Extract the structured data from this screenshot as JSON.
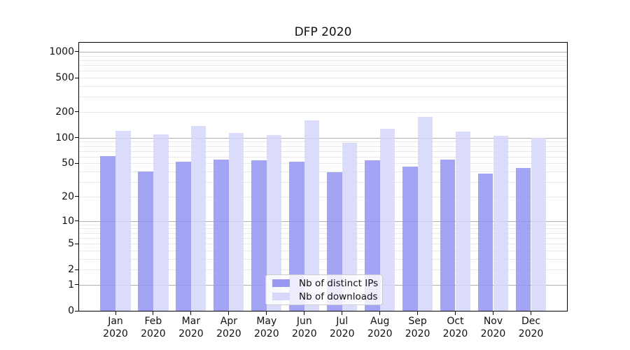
{
  "chart_data": {
    "type": "bar",
    "title": "DFP 2020",
    "categories": [
      "Jan 2020",
      "Feb 2020",
      "Mar 2020",
      "Apr 2020",
      "May 2020",
      "Jun 2020",
      "Jul 2020",
      "Aug 2020",
      "Sep 2020",
      "Oct 2020",
      "Nov 2020",
      "Dec 2020"
    ],
    "series": [
      {
        "name": "Nb of distinct IPs",
        "color": "#9494f3",
        "values": [
          61,
          40,
          52,
          55,
          54,
          52,
          39,
          54,
          46,
          55,
          38,
          44
        ]
      },
      {
        "name": "Nb of downloads",
        "color": "#d6d6fc",
        "values": [
          120,
          110,
          136,
          113,
          108,
          159,
          88,
          128,
          175,
          119,
          106,
          100
        ]
      }
    ],
    "xlabel": "",
    "ylabel": "",
    "yscale": "log1p",
    "y_ticks": [
      0,
      1,
      2,
      5,
      10,
      20,
      50,
      100,
      200,
      500,
      1000
    ],
    "ylim": [
      0,
      1272
    ],
    "grid": true,
    "legend_position": "lower center"
  }
}
